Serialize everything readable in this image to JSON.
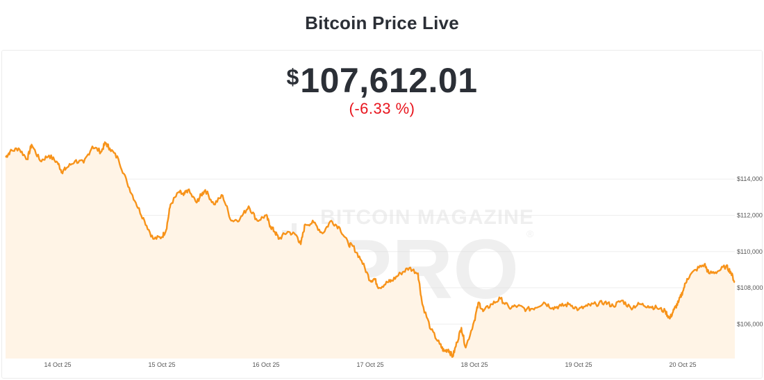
{
  "header": {
    "title": "Bitcoin Price Live"
  },
  "ticker": {
    "currency_symbol": "$",
    "price": "107,612.01",
    "change": "(-6.33 %)",
    "change_color": "#e8141d"
  },
  "watermark": {
    "text_top": "BITCOIN MAGAZINE",
    "text_main": "PRO",
    "mark": "®"
  },
  "colors": {
    "line": "#f7931a",
    "fill": "#fff4e6",
    "grid": "#eeeeee",
    "axis_text": "#555555"
  },
  "chart_data": {
    "type": "area",
    "title": "",
    "xlabel": "",
    "ylabel": "",
    "x_ticks": [
      "14 Oct 25",
      "15 Oct 25",
      "16 Oct 25",
      "17 Oct 25",
      "18 Oct 25",
      "19 Oct 25",
      "20 Oct 25"
    ],
    "y_ticks": [
      106000,
      108000,
      110000,
      112000,
      114000
    ],
    "y_tick_labels": [
      "$106,000",
      "$108,000",
      "$110,000",
      "$112,000",
      "$114,000"
    ],
    "ylim": [
      104100,
      116800
    ],
    "xlim": [
      "2025-10-13T12:00",
      "2025-10-20T12:00"
    ],
    "grid": true,
    "series": [
      {
        "x": [
          "2025-10-13T12:00",
          "2025-10-13T13:00",
          "2025-10-13T15:00",
          "2025-10-13T17:00",
          "2025-10-13T18:00",
          "2025-10-13T20:00",
          "2025-10-13T22:00",
          "2025-10-14T00:00",
          "2025-10-14T01:00",
          "2025-10-14T02:00",
          "2025-10-14T04:00",
          "2025-10-14T06:00",
          "2025-10-14T08:00",
          "2025-10-14T10:00",
          "2025-10-14T11:00",
          "2025-10-14T12:00",
          "2025-10-14T14:00",
          "2025-10-14T16:00",
          "2025-10-14T18:00",
          "2025-10-14T20:00",
          "2025-10-14T22:00",
          "2025-10-15T00:00",
          "2025-10-15T01:00",
          "2025-10-15T02:00",
          "2025-10-15T04:00",
          "2025-10-15T05:00",
          "2025-10-15T06:00",
          "2025-10-15T08:00",
          "2025-10-15T09:00",
          "2025-10-15T10:00",
          "2025-10-15T12:00",
          "2025-10-15T14:00",
          "2025-10-15T16:00",
          "2025-10-15T18:00",
          "2025-10-15T20:00",
          "2025-10-15T22:00",
          "2025-10-16T00:00",
          "2025-10-16T01:00",
          "2025-10-16T02:00",
          "2025-10-16T03:00",
          "2025-10-16T05:00",
          "2025-10-16T07:00",
          "2025-10-16T08:00",
          "2025-10-16T09:00",
          "2025-10-16T11:00",
          "2025-10-16T13:00",
          "2025-10-16T15:00",
          "2025-10-16T17:00",
          "2025-10-16T19:00",
          "2025-10-16T20:00",
          "2025-10-16T22:00",
          "2025-10-17T00:00",
          "2025-10-17T01:00",
          "2025-10-17T02:00",
          "2025-10-17T04:00",
          "2025-10-17T05:00",
          "2025-10-17T07:00",
          "2025-10-17T09:00",
          "2025-10-17T11:00",
          "2025-10-17T12:00",
          "2025-10-17T14:00",
          "2025-10-17T16:00",
          "2025-10-17T17:00",
          "2025-10-17T18:00",
          "2025-10-17T19:00",
          "2025-10-17T20:00",
          "2025-10-17T21:00",
          "2025-10-17T22:00",
          "2025-10-18T00:00",
          "2025-10-18T01:00",
          "2025-10-18T02:00",
          "2025-10-18T04:00",
          "2025-10-18T06:00",
          "2025-10-18T08:00",
          "2025-10-18T10:00",
          "2025-10-18T12:00",
          "2025-10-18T14:00",
          "2025-10-18T16:00",
          "2025-10-18T18:00",
          "2025-10-18T20:00",
          "2025-10-18T22:00",
          "2025-10-19T00:00",
          "2025-10-19T02:00",
          "2025-10-19T04:00",
          "2025-10-19T06:00",
          "2025-10-19T08:00",
          "2025-10-19T10:00",
          "2025-10-19T12:00",
          "2025-10-19T14:00",
          "2025-10-19T16:00",
          "2025-10-19T18:00",
          "2025-10-19T20:00",
          "2025-10-19T21:00",
          "2025-10-19T22:00",
          "2025-10-19T23:00",
          "2025-10-20T00:00",
          "2025-10-20T01:00",
          "2025-10-20T03:00",
          "2025-10-20T05:00",
          "2025-10-20T06:00",
          "2025-10-20T08:00",
          "2025-10-20T10:00",
          "2025-10-20T11:00",
          "2025-10-20T12:00"
        ],
        "values": [
          115200,
          115500,
          115700,
          115100,
          115900,
          115000,
          115300,
          114900,
          114400,
          114600,
          115000,
          114900,
          115800,
          115500,
          116000,
          115700,
          115100,
          113800,
          112700,
          111700,
          110700,
          110800,
          111200,
          112600,
          113300,
          113100,
          113400,
          112700,
          113100,
          113400,
          112600,
          113100,
          111700,
          111800,
          112500,
          111700,
          112000,
          111400,
          111100,
          110700,
          111100,
          110900,
          110400,
          111500,
          111600,
          111000,
          111700,
          111300,
          110400,
          110300,
          109500,
          108400,
          108500,
          108000,
          108300,
          108400,
          108800,
          109100,
          108800,
          107100,
          105700,
          104900,
          104500,
          104600,
          104200,
          105000,
          105800,
          104700,
          106200,
          107200,
          106700,
          107100,
          107400,
          106900,
          107000,
          106800,
          106900,
          107200,
          106900,
          107000,
          107100,
          106800,
          107000,
          107100,
          107200,
          107000,
          107300,
          106900,
          107100,
          107000,
          106900,
          106700,
          106300,
          106800,
          107200,
          107800,
          108500,
          109000,
          109300,
          108800,
          108900,
          109200,
          108900,
          108300
        ]
      }
    ]
  }
}
